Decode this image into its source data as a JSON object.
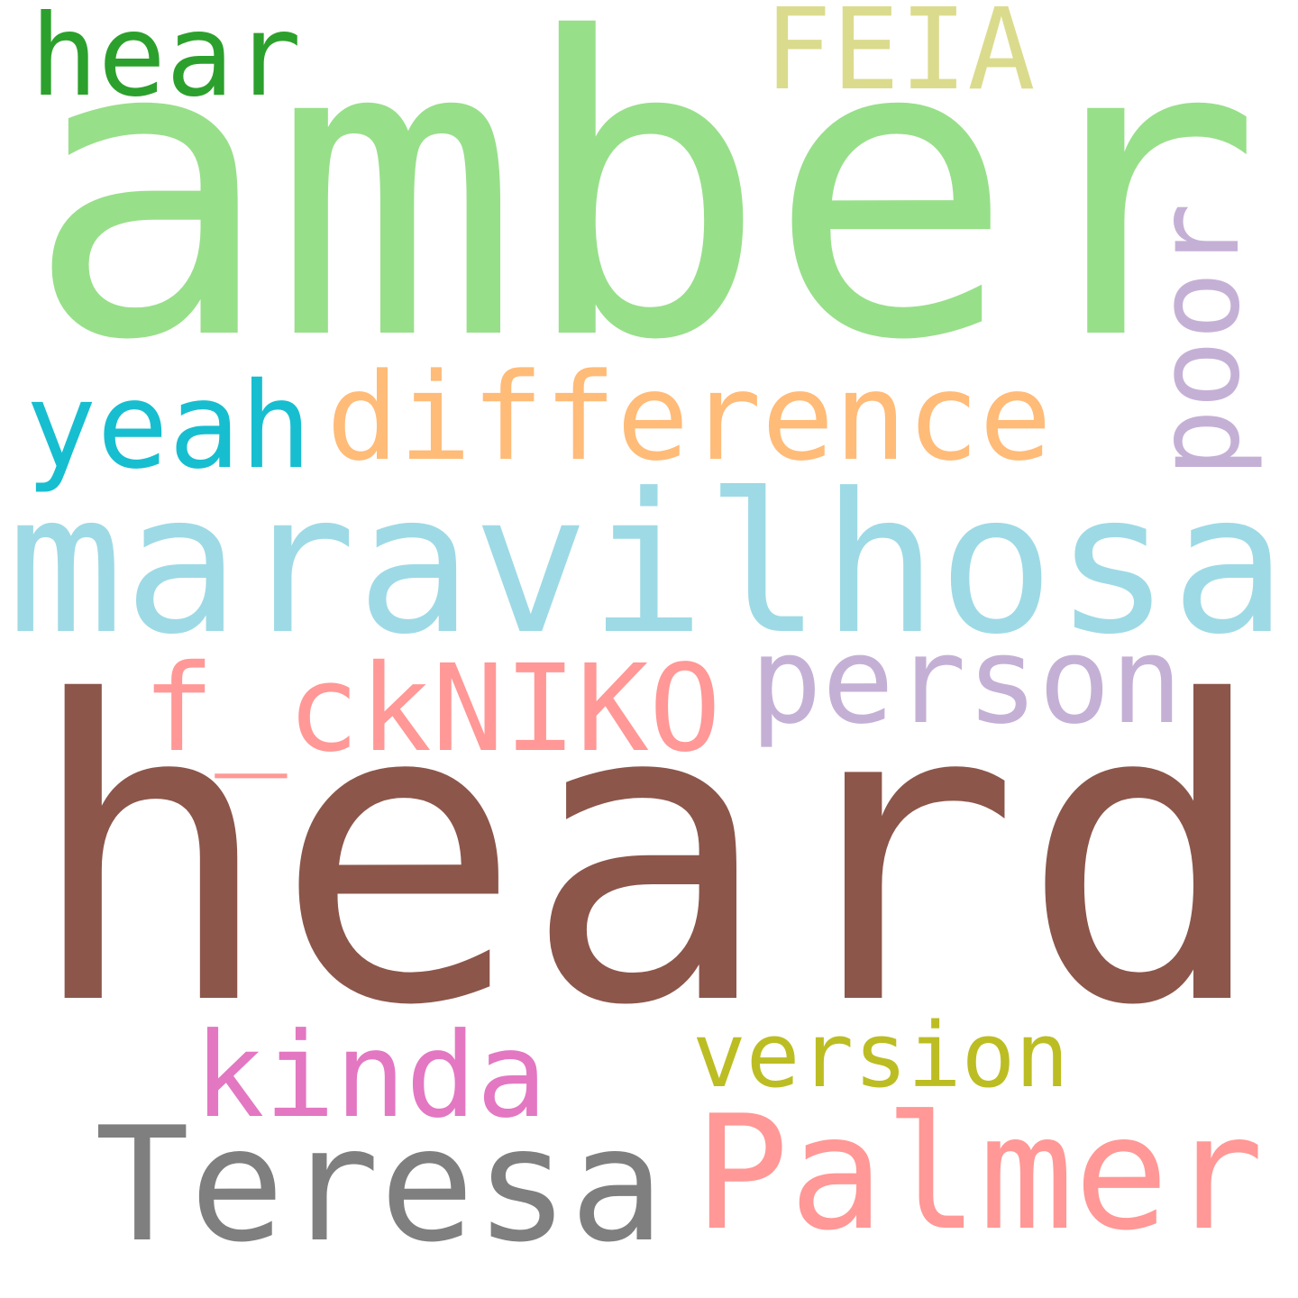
{
  "words": [
    {
      "key": "hear",
      "text": "hear",
      "color": "#2ca02c",
      "rank": 11
    },
    {
      "key": "FEIA",
      "text": "FEIA",
      "color": "#dbdb8d",
      "rank": 12
    },
    {
      "key": "amber",
      "text": "amber",
      "color": "#98df8a",
      "rank": 2
    },
    {
      "key": "poor",
      "text": "poor",
      "color": "#c5b0d5",
      "rank": 13,
      "orientation": "vertical"
    },
    {
      "key": "yeah",
      "text": "yeah",
      "color": "#17becf",
      "rank": 8
    },
    {
      "key": "difference",
      "text": "difference",
      "color": "#ffbb78",
      "rank": 7
    },
    {
      "key": "maravilhosa",
      "text": "maravilhosa",
      "color": "#9edae5",
      "rank": 3
    },
    {
      "key": "person",
      "text": "person",
      "color": "#c5b0d5",
      "rank": 9
    },
    {
      "key": "fckNIKO",
      "text": "f_ckNIKO",
      "color": "#ff9896",
      "rank": 10
    },
    {
      "key": "heard",
      "text": "heard",
      "color": "#8c564b",
      "rank": 1
    },
    {
      "key": "kinda",
      "text": "kinda",
      "color": "#e377c2",
      "rank": 14
    },
    {
      "key": "version",
      "text": "version",
      "color": "#bcbd22",
      "rank": 15
    },
    {
      "key": "Teresa",
      "text": "Teresa",
      "color": "#7f7f7f",
      "rank": 5
    },
    {
      "key": "Palmer",
      "text": "Palmer",
      "color": "#ff9896",
      "rank": 4
    }
  ]
}
